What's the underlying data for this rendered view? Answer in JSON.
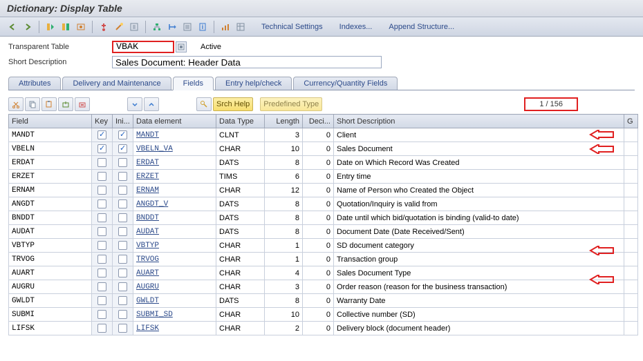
{
  "title": "Dictionary: Display Table",
  "toolbar_buttons": {
    "technical_settings": "Technical Settings",
    "indexes": "Indexes...",
    "append_structure": "Append Structure..."
  },
  "form": {
    "table_label": "Transparent Table",
    "table_value": "VBAK",
    "status": "Active",
    "desc_label": "Short Description",
    "desc_value": "Sales Document: Header Data"
  },
  "tabs": {
    "attributes": "Attributes",
    "delivery": "Delivery and Maintenance",
    "fields": "Fields",
    "entry_help": "Entry help/check",
    "currency": "Currency/Quantity Fields"
  },
  "inner_buttons": {
    "srch_help": "Srch Help",
    "predefined": "Predefined Type"
  },
  "counter": "1  /  156",
  "columns": {
    "field": "Field",
    "key": "Key",
    "ini": "Ini...",
    "data_element": "Data element",
    "data_type": "Data Type",
    "length": "Length",
    "deci": "Deci...",
    "short_desc": "Short Description",
    "gr": "G"
  },
  "rows": [
    {
      "field": "MANDT",
      "key": true,
      "ini": true,
      "elem": "MANDT",
      "type": "CLNT",
      "len": 3,
      "dec": 0,
      "desc": "Client",
      "arrow": true
    },
    {
      "field": "VBELN",
      "key": true,
      "ini": true,
      "elem": "VBELN_VA",
      "type": "CHAR",
      "len": 10,
      "dec": 0,
      "desc": "Sales Document",
      "arrow": true
    },
    {
      "field": "ERDAT",
      "key": false,
      "ini": false,
      "elem": "ERDAT",
      "type": "DATS",
      "len": 8,
      "dec": 0,
      "desc": "Date on Which Record Was Created",
      "arrow": false
    },
    {
      "field": "ERZET",
      "key": false,
      "ini": false,
      "elem": "ERZET",
      "type": "TIMS",
      "len": 6,
      "dec": 0,
      "desc": "Entry time",
      "arrow": false
    },
    {
      "field": "ERNAM",
      "key": false,
      "ini": false,
      "elem": "ERNAM",
      "type": "CHAR",
      "len": 12,
      "dec": 0,
      "desc": "Name of Person who Created the Object",
      "arrow": false
    },
    {
      "field": "ANGDT",
      "key": false,
      "ini": false,
      "elem": "ANGDT_V",
      "type": "DATS",
      "len": 8,
      "dec": 0,
      "desc": "Quotation/Inquiry is valid from",
      "arrow": false
    },
    {
      "field": "BNDDT",
      "key": false,
      "ini": false,
      "elem": "BNDDT",
      "type": "DATS",
      "len": 8,
      "dec": 0,
      "desc": "Date until which bid/quotation is binding (valid-to date)",
      "arrow": false
    },
    {
      "field": "AUDAT",
      "key": false,
      "ini": false,
      "elem": "AUDAT",
      "type": "DATS",
      "len": 8,
      "dec": 0,
      "desc": "Document Date (Date Received/Sent)",
      "arrow": false
    },
    {
      "field": "VBTYP",
      "key": false,
      "ini": false,
      "elem": "VBTYP",
      "type": "CHAR",
      "len": 1,
      "dec": 0,
      "desc": "SD document category",
      "arrow": true
    },
    {
      "field": "TRVOG",
      "key": false,
      "ini": false,
      "elem": "TRVOG",
      "type": "CHAR",
      "len": 1,
      "dec": 0,
      "desc": "Transaction group",
      "arrow": false
    },
    {
      "field": "AUART",
      "key": false,
      "ini": false,
      "elem": "AUART",
      "type": "CHAR",
      "len": 4,
      "dec": 0,
      "desc": "Sales Document Type",
      "arrow": true
    },
    {
      "field": "AUGRU",
      "key": false,
      "ini": false,
      "elem": "AUGRU",
      "type": "CHAR",
      "len": 3,
      "dec": 0,
      "desc": "Order reason (reason for the business transaction)",
      "arrow": false
    },
    {
      "field": "GWLDT",
      "key": false,
      "ini": false,
      "elem": "GWLDT",
      "type": "DATS",
      "len": 8,
      "dec": 0,
      "desc": "Warranty Date",
      "arrow": false
    },
    {
      "field": "SUBMI",
      "key": false,
      "ini": false,
      "elem": "SUBMI_SD",
      "type": "CHAR",
      "len": 10,
      "dec": 0,
      "desc": "Collective number (SD)",
      "arrow": false
    },
    {
      "field": "LIFSK",
      "key": false,
      "ini": false,
      "elem": "LIFSK",
      "type": "CHAR",
      "len": 2,
      "dec": 0,
      "desc": "Delivery block (document header)",
      "arrow": false
    }
  ],
  "colors": {
    "red": "#e02020",
    "link": "#2c4a8a"
  }
}
